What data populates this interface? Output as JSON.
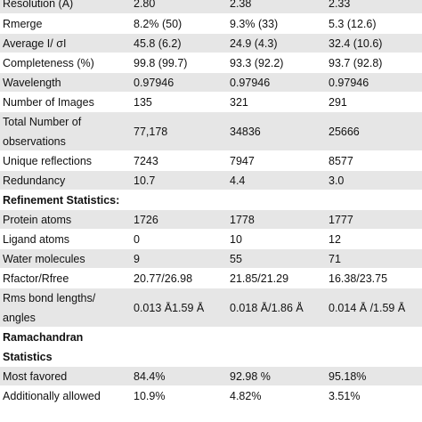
{
  "table": {
    "rows": [
      {
        "label": "Resolution (Å)",
        "v1": "2.80",
        "v2": "2.38",
        "v3": "2.33"
      },
      {
        "label": "Rmerge",
        "v1": "8.2% (50)",
        "v2": "9.3% (33)",
        "v3": "5.3 (12.6)"
      },
      {
        "label": "Average I/ σI",
        "v1": "45.8 (6.2)",
        "v2": "24.9 (4.3)",
        "v3": "32.4 (10.6)"
      },
      {
        "label": "Completeness (%)",
        "v1": "99.8 (99.7)",
        "v2": "93.3 (92.2)",
        "v3": "93.7 (92.8)"
      },
      {
        "label": "Wavelength",
        "v1": "0.97946",
        "v2": "0.97946",
        "v3": "0.97946"
      },
      {
        "label": "Number of Images",
        "v1": "135",
        "v2": "321",
        "v3": "291"
      },
      {
        "label": "Total Number of observations",
        "v1": "77,178",
        "v2": "34836",
        "v3": "25666"
      },
      {
        "label": "Unique reflections",
        "v1": "7243",
        "v2": "7947",
        "v3": "8577"
      },
      {
        "label": "Redundancy",
        "v1": "10.7",
        "v2": "4.4",
        "v3": "3.0"
      },
      {
        "label": "Refinement Statistics:",
        "v1": "",
        "v2": "",
        "v3": ""
      },
      {
        "label": "Protein atoms",
        "v1": "1726",
        "v2": "1778",
        "v3": "1777"
      },
      {
        "label": "Ligand atoms",
        "v1": "0",
        "v2": "10",
        "v3": "12"
      },
      {
        "label": "Water molecules",
        "v1": "9",
        "v2": "55",
        "v3": "71"
      },
      {
        "label": "Rfactor/Rfree",
        "v1": "20.77/26.98",
        "v2": "21.85/21.29",
        "v3": "16.38/23.75"
      },
      {
        "label": "Rms bond lengths/ angles",
        "v1": "0.013 Å1.59 Å",
        "v2": "0.018 Å/1.86 Å",
        "v3": "0.014 Å /1.59 Å"
      },
      {
        "label": "Ramachandran Statistics",
        "v1": "",
        "v2": "",
        "v3": ""
      },
      {
        "label": "Most favored",
        "v1": "84.4%",
        "v2": "92.98 %",
        "v3": "95.18%"
      },
      {
        "label": "Additionally allowed",
        "v1": "10.9%",
        "v2": "4.82%",
        "v3": "3.51%"
      }
    ]
  }
}
